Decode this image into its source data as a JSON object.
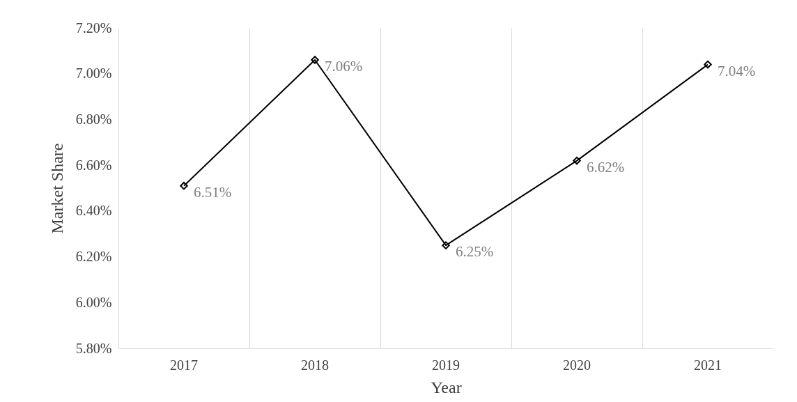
{
  "chart_data": {
    "type": "line",
    "xlabel": "Year",
    "ylabel": "Market Share",
    "categories": [
      "2017",
      "2018",
      "2019",
      "2020",
      "2021"
    ],
    "values": [
      6.51,
      7.06,
      6.25,
      6.62,
      7.04
    ],
    "value_labels": [
      "6.51%",
      "7.06%",
      "6.25%",
      "6.62%",
      "7.04%"
    ],
    "color": "#000000",
    "marker": "diamond",
    "line_style": "solid",
    "grid": "x",
    "ylim": [
      5.8,
      7.2
    ],
    "yticks": [
      {
        "value": 5.8,
        "label": "5.80%"
      },
      {
        "value": 6.0,
        "label": "6.00%"
      },
      {
        "value": 6.2,
        "label": "6.20%"
      },
      {
        "value": 6.4,
        "label": "6.40%"
      },
      {
        "value": 6.6,
        "label": "6.60%"
      },
      {
        "value": 6.8,
        "label": "6.80%"
      },
      {
        "value": 7.0,
        "label": "7.00%"
      },
      {
        "value": 7.2,
        "label": "7.20%"
      }
    ]
  }
}
